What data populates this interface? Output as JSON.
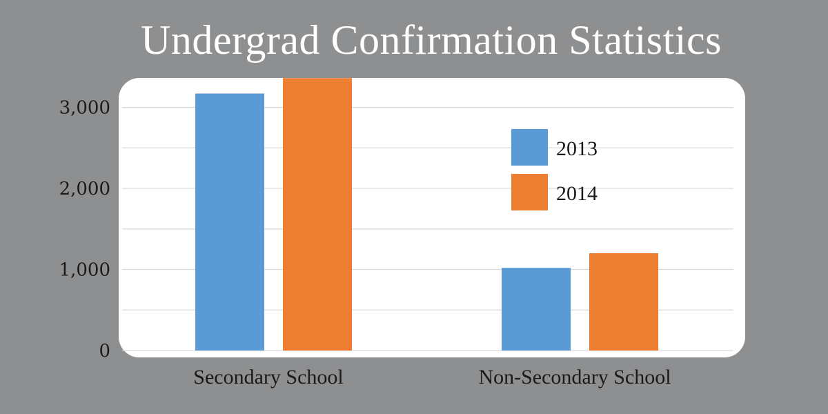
{
  "chart_data": {
    "type": "bar",
    "title": "Undergrad Confirmation Statistics",
    "categories": [
      "Secondary School",
      "Non-Secondary School"
    ],
    "series": [
      {
        "name": "2013",
        "values": [
          3170,
          1020
        ],
        "color": "#5b9bd5"
      },
      {
        "name": "2014",
        "values": [
          3360,
          1200
        ],
        "color": "#ed7d31"
      }
    ],
    "y_ticks": [
      0,
      1000,
      2000,
      3000
    ],
    "y_tick_labels": [
      "0",
      "1,000",
      "2,000",
      "3,000"
    ],
    "ylim": [
      0,
      3600
    ],
    "xlabel": "",
    "ylabel": "",
    "grid": true,
    "legend_position": "top-right",
    "colors": {
      "background": "#8e8f91",
      "plot_area": "#ffffff",
      "gridline": "#d9d9d9",
      "title_text": "#ffffff",
      "label_text": "#1a1a1a"
    }
  }
}
